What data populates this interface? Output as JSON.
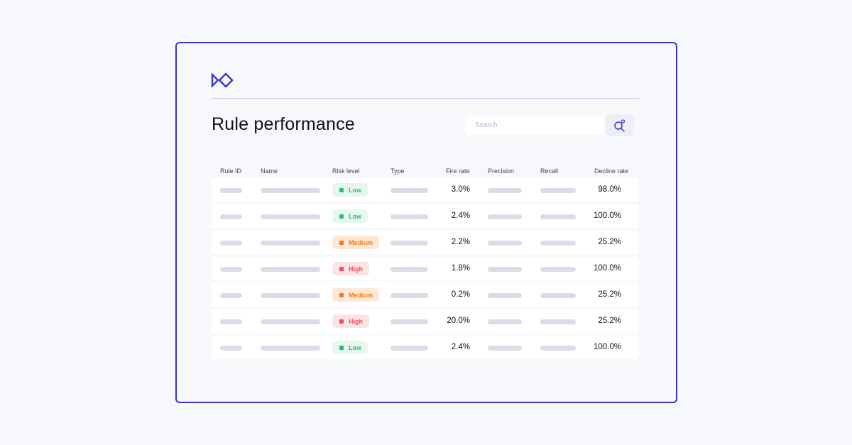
{
  "app": {
    "logo_icon": "diamond-chevron-logo-icon",
    "accent": "#3a35c8"
  },
  "page": {
    "title": "Rule performance"
  },
  "search": {
    "placeholder": "Search",
    "value": "",
    "icon": "search-icon"
  },
  "table": {
    "columns": [
      "Rule ID",
      "Name",
      "Risk level",
      "Type",
      "Fire rate",
      "Precision",
      "Recall",
      "Decline rate"
    ],
    "risk_styles": {
      "Low": {
        "bg": "#e6f8ee",
        "fg": "#33b77c"
      },
      "Medium": {
        "bg": "#fde9d6",
        "fg": "#f07d1a"
      },
      "High": {
        "bg": "#fde4e4",
        "fg": "#ec4f5d"
      }
    },
    "rows": [
      {
        "risk": "Low",
        "fire_rate": "3.0%",
        "decline_rate": "98.0%"
      },
      {
        "risk": "Low",
        "fire_rate": "2.4%",
        "decline_rate": "100.0%"
      },
      {
        "risk": "Medium",
        "fire_rate": "2.2%",
        "decline_rate": "25.2%"
      },
      {
        "risk": "High",
        "fire_rate": "1.8%",
        "decline_rate": "100.0%"
      },
      {
        "risk": "Medium",
        "fire_rate": "0.2%",
        "decline_rate": "25.2%"
      },
      {
        "risk": "High",
        "fire_rate": "20.0%",
        "decline_rate": "25.2%"
      },
      {
        "risk": "Low",
        "fire_rate": "2.4%",
        "decline_rate": "100.0%"
      }
    ]
  }
}
